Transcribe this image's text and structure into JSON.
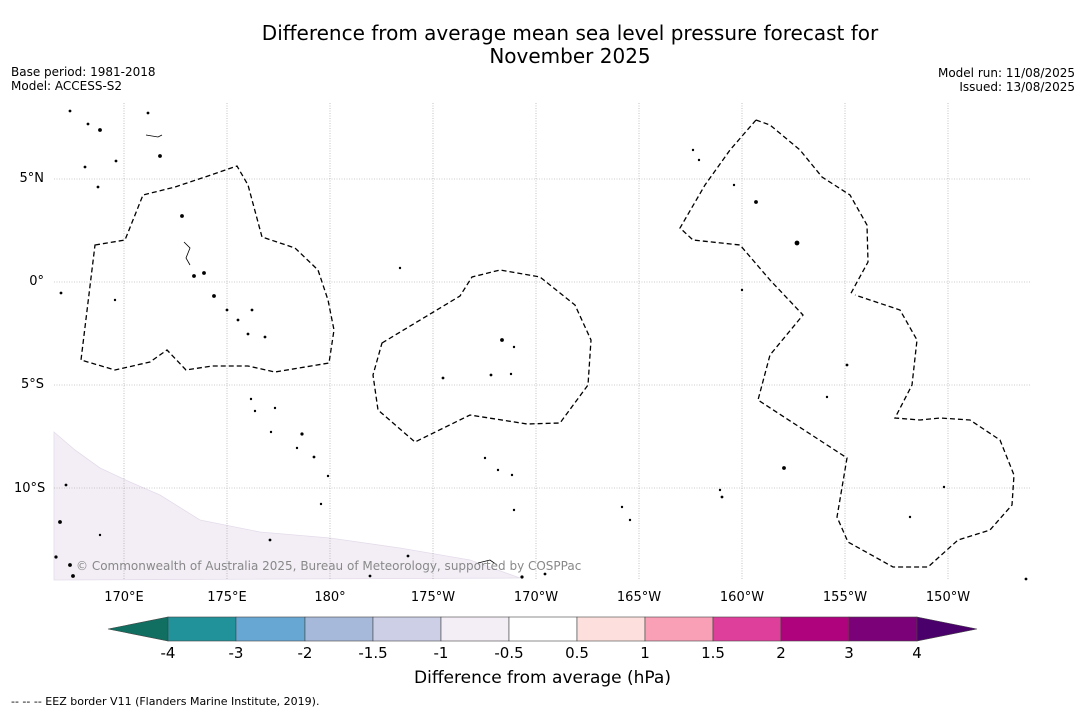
{
  "title_line1": "Difference from average mean sea level pressure forecast for",
  "title_line2": "November 2025",
  "base_period": "Base period: 1981-2018",
  "model": "Model: ACCESS-S2",
  "model_run": "Model run: 11/08/2025",
  "issued": "Issued: 13/08/2025",
  "lat_labels": [
    "5°N",
    "0°",
    "5°S",
    "10°S"
  ],
  "lon_labels": [
    "170°E",
    "175°E",
    "180°",
    "175°W",
    "170°W",
    "165°W",
    "160°W",
    "155°W",
    "150°W"
  ],
  "copyright": "© Commonwealth of Australia 2025, Bureau of Meteorology, supported by COSPPac",
  "colorbar": {
    "title": "Difference from average (hPa)",
    "tick_labels": [
      "-4",
      "-3",
      "-2",
      "-1.5",
      "-1",
      "-0.5",
      "0.5",
      "1",
      "1.5",
      "2",
      "3",
      "4"
    ],
    "colors": [
      "#106f61",
      "#21919a",
      "#66a8d3",
      "#a7b9db",
      "#cdcfe7",
      "#f3eef6",
      "#ffffff",
      "#fde0dd",
      "#f9a0b6",
      "#de3f9b",
      "#ae037d",
      "#7a0177",
      "#4a006a"
    ]
  },
  "legend_note": "-- -- -- EEZ border V11 (Flanders Marine Institute, 2019)."
}
